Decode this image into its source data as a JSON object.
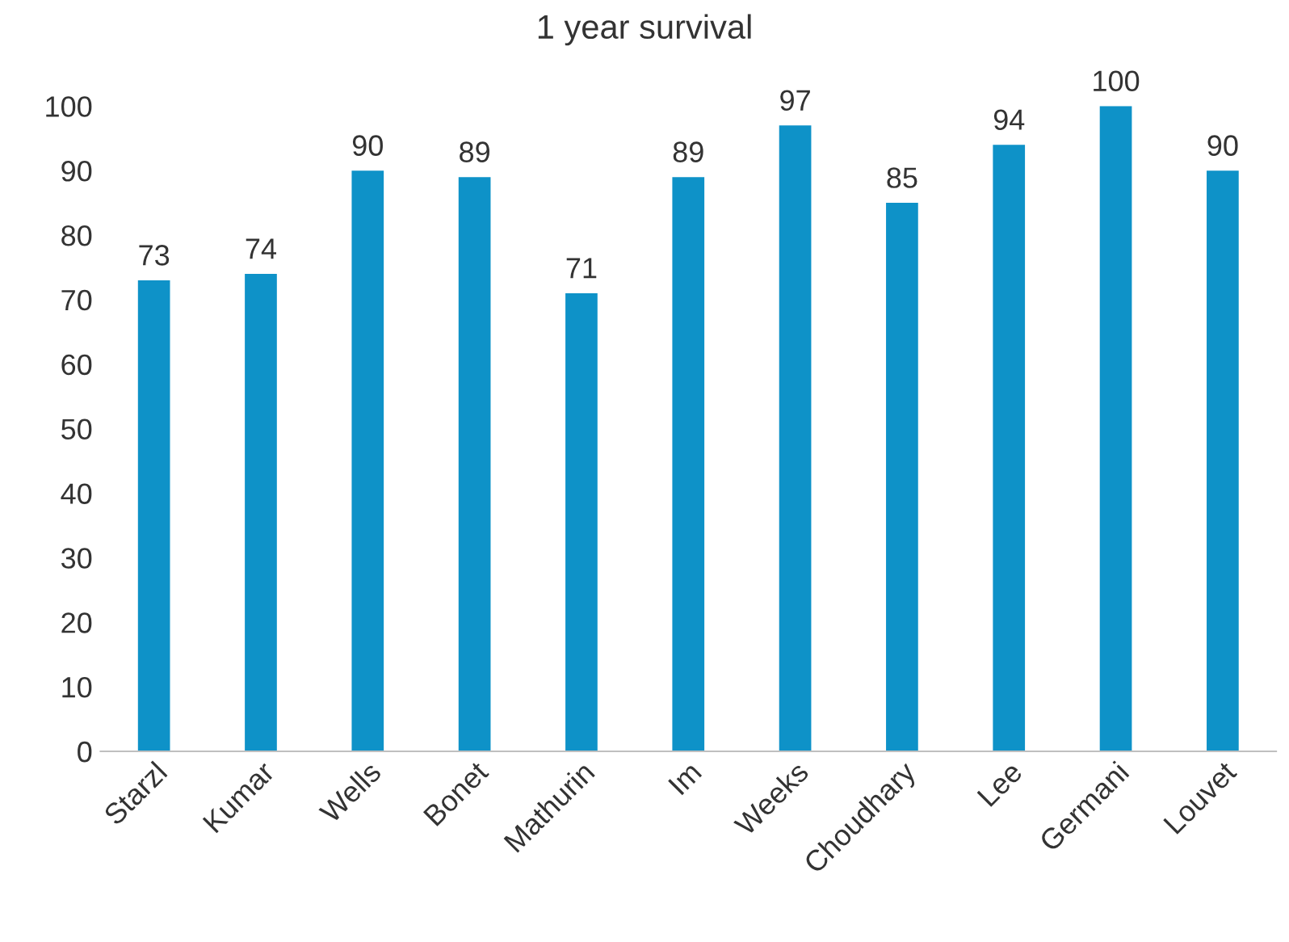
{
  "chart_data": {
    "type": "bar",
    "title": "1 year survival",
    "categories": [
      "Starzl",
      "Kumar",
      "Wells",
      "Bonet",
      "Mathurin",
      "Im",
      "Weeks",
      "Choudhary",
      "Lee",
      "Germani",
      "Louvet"
    ],
    "values": [
      73,
      74,
      90,
      89,
      71,
      89,
      97,
      85,
      94,
      100,
      90
    ],
    "color": "#0e92c8",
    "ylim": [
      0,
      100
    ],
    "yticks": [
      0,
      10,
      20,
      30,
      40,
      50,
      60,
      70,
      80,
      90,
      100
    ],
    "grid": false,
    "data_labels": true
  }
}
